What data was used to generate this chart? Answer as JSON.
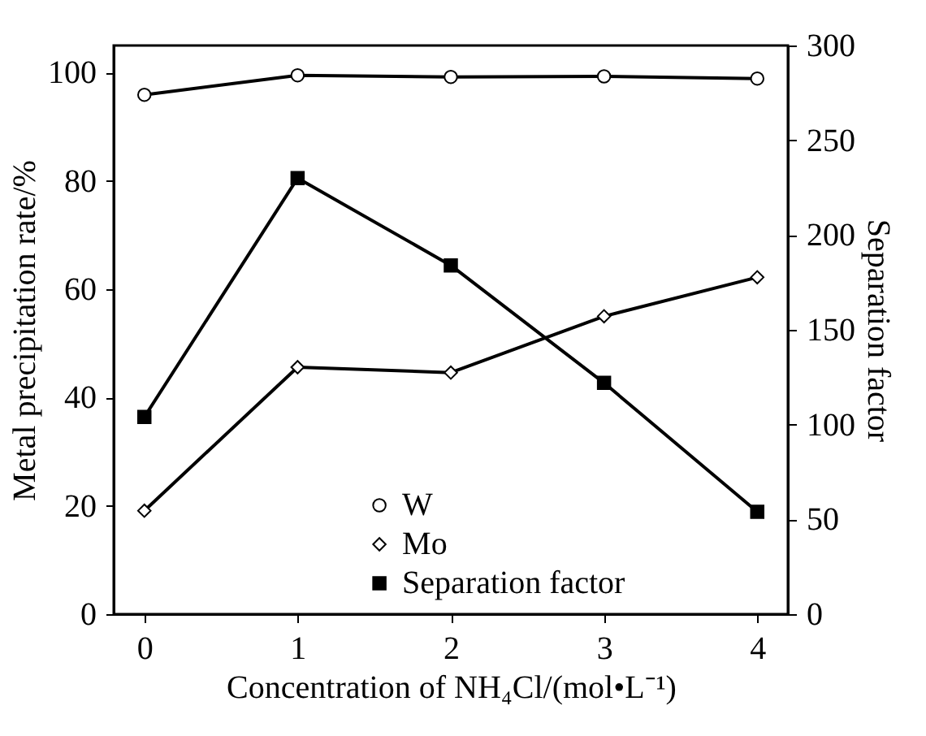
{
  "chart_data": {
    "type": "line",
    "xlabel": "Concentration of NH₄Cl/(mol•L⁻¹)",
    "ylabel": "Metal precipitation rate/%",
    "y2label": "Separation factor",
    "x": [
      0,
      1,
      2,
      3,
      4
    ],
    "xlim": [
      -0.2,
      4.2
    ],
    "xticks": [
      0,
      1,
      2,
      3,
      4
    ],
    "ylim": [
      0,
      105
    ],
    "yticks": [
      0,
      20,
      40,
      60,
      80,
      100
    ],
    "y2lim": [
      0,
      300
    ],
    "y2ticks": [
      0,
      50,
      100,
      150,
      200,
      250,
      300
    ],
    "grid": false,
    "legend": "bottom",
    "line_style": "solid",
    "series": [
      {
        "name": "W",
        "color": "#000000",
        "marker": "circle",
        "values": [
          95.9,
          99.5,
          99.2,
          99.3,
          98.9
        ]
      },
      {
        "name": "Mo",
        "color": "#000000",
        "marker": "diamond",
        "values": [
          19.1,
          45.6,
          44.6,
          55.0,
          62.2
        ]
      },
      {
        "name": "Separation factor",
        "color": "#000000",
        "marker": "square",
        "axis": "y2",
        "values": [
          104,
          230,
          184,
          122,
          54
        ]
      }
    ]
  }
}
